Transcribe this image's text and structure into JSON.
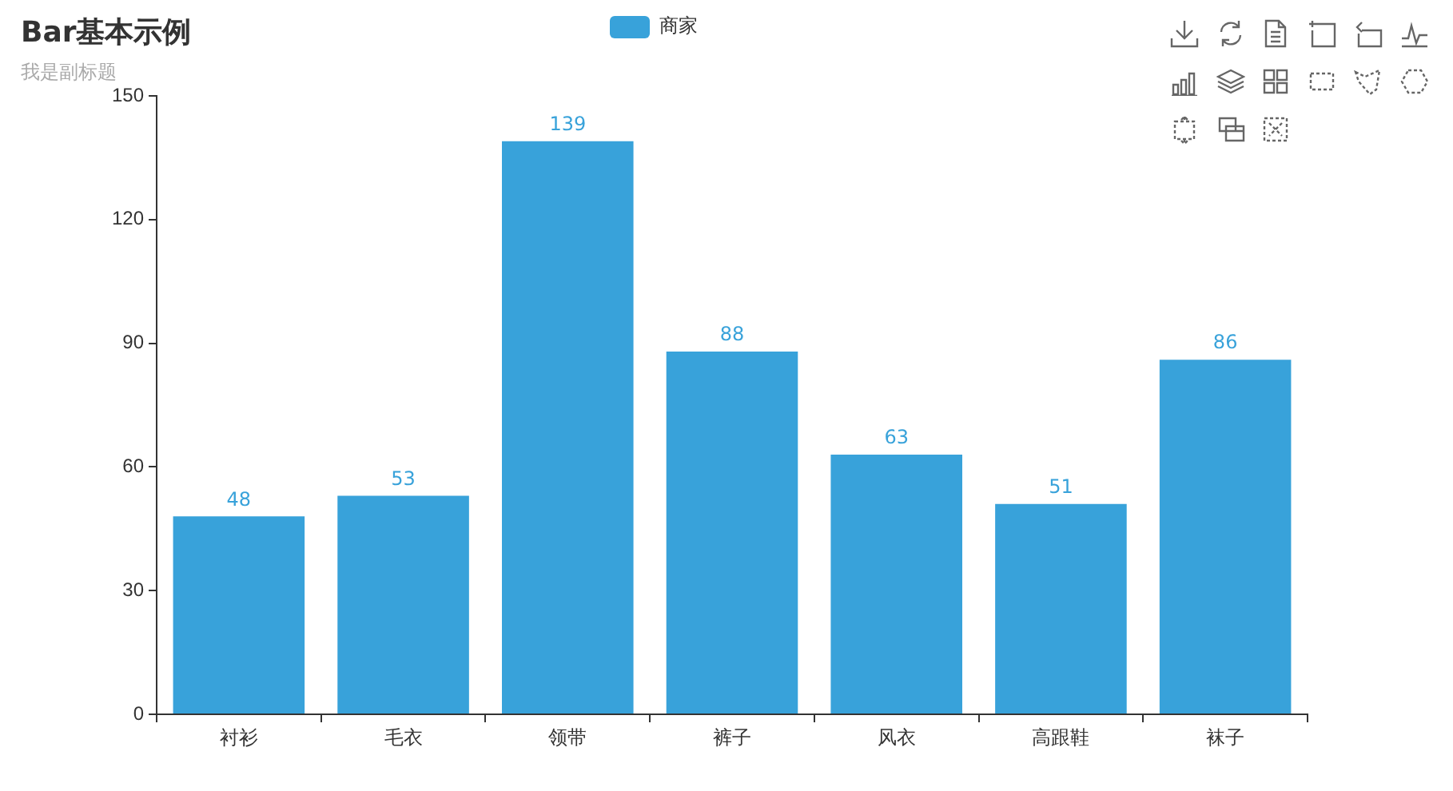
{
  "chart_data": {
    "type": "bar",
    "title": "Bar基本示例",
    "subtitle": "我是副标题",
    "categories": [
      "衬衫",
      "毛衣",
      "领带",
      "裤子",
      "风衣",
      "高跟鞋",
      "袜子"
    ],
    "series": [
      {
        "name": "商家",
        "color": "#38a2da",
        "values": [
          48,
          53,
          139,
          88,
          63,
          51,
          86
        ]
      }
    ],
    "ylim": [
      0,
      150
    ],
    "yticks": [
      0,
      30,
      60,
      90,
      120,
      150
    ],
    "grid": false,
    "legend": "top",
    "data_labels": true
  }
}
